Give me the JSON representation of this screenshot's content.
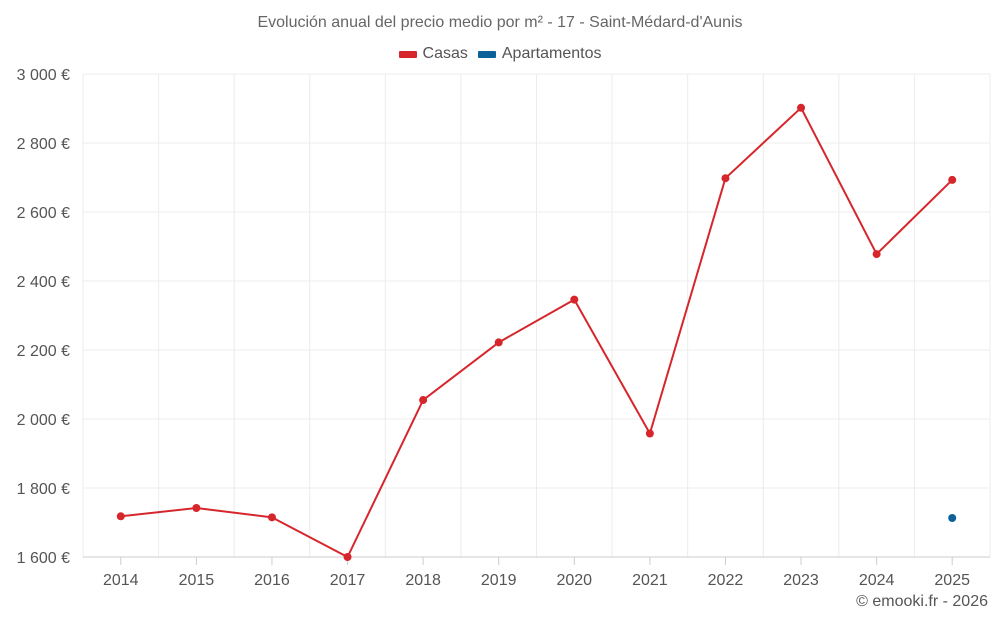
{
  "chart_data": {
    "type": "line",
    "title": "Evolución anual del precio medio por m² - 17 - Saint-Médard-d'Aunis",
    "categories": [
      "2014",
      "2015",
      "2016",
      "2017",
      "2018",
      "2019",
      "2020",
      "2021",
      "2022",
      "2023",
      "2024",
      "2025"
    ],
    "y_ticks": [
      1600,
      1800,
      2000,
      2200,
      2400,
      2600,
      2800,
      3000
    ],
    "y_tick_labels": [
      "1 600 €",
      "1 800 €",
      "2 000 €",
      "2 200 €",
      "2 400 €",
      "2 600 €",
      "2 800 €",
      "3 000 €"
    ],
    "ylim": [
      1600,
      3000
    ],
    "grid": true,
    "legend_position": "top-center",
    "series": [
      {
        "name": "Casas",
        "color": "#d7262b",
        "values": [
          1718,
          1742,
          1715,
          1600,
          2055,
          2222,
          2346,
          1958,
          2698,
          2902,
          2478,
          2693
        ]
      },
      {
        "name": "Apartamentos",
        "color": "#0d6199",
        "values": [
          null,
          null,
          null,
          null,
          null,
          null,
          null,
          null,
          null,
          null,
          null,
          1713
        ]
      }
    ]
  },
  "credit": "© emooki.fr - 2026"
}
